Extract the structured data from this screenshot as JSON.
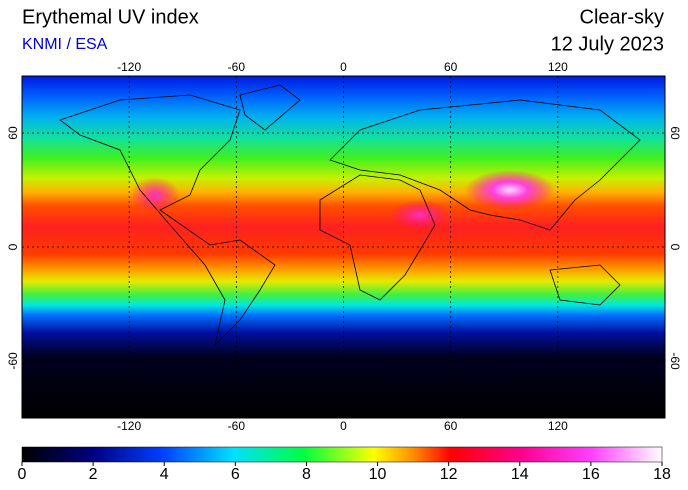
{
  "header": {
    "title": "Erythemal UV index",
    "source": "KNMI / ESA",
    "condition": "Clear-sky",
    "date": "12 July 2023"
  },
  "map": {
    "lon_range": [
      -180,
      180
    ],
    "lat_range": [
      -90,
      90
    ],
    "lon_ticks": [
      -120,
      -60,
      0,
      60,
      120
    ],
    "lat_ticks": [
      60,
      0,
      -60
    ]
  },
  "colorbar": {
    "range": [
      0,
      18
    ],
    "ticks": [
      0,
      2,
      4,
      6,
      8,
      10,
      12,
      14,
      16,
      18
    ]
  }
}
